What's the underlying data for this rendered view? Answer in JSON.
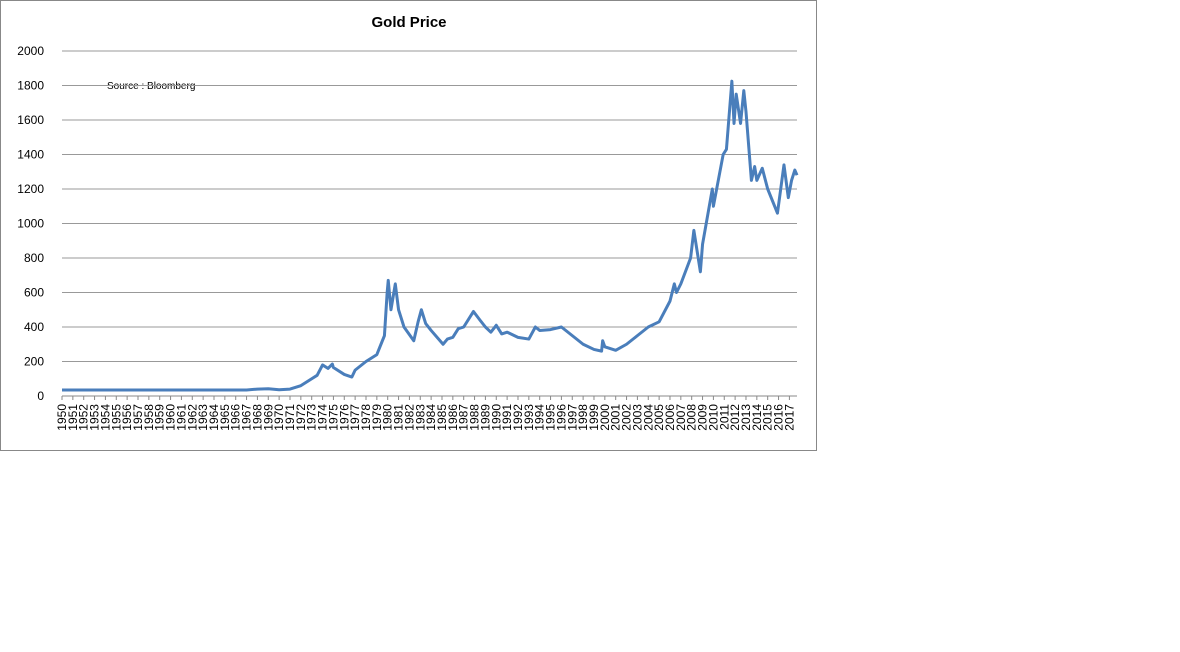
{
  "chart_data": {
    "type": "line",
    "title": "Gold Price",
    "annotation": "Source : Bloomberg",
    "x": [
      1950,
      1967,
      1968,
      1969,
      1970,
      1971,
      1972,
      1973,
      1973.5,
      1974,
      1974.5,
      1974.9,
      1975,
      1976,
      1976.7,
      1977,
      1978,
      1979,
      1979.7,
      1979.95,
      1980.05,
      1980.3,
      1980.7,
      1981,
      1981.5,
      1982.4,
      1982.8,
      1983.1,
      1983.5,
      1984,
      1985.1,
      1985.5,
      1986,
      1986.5,
      1987,
      1987.9,
      1988.5,
      1989,
      1989.5,
      1990,
      1990.5,
      1991,
      1992,
      1993,
      1993.6,
      1994,
      1995,
      1996,
      1997,
      1998,
      1999,
      1999.7,
      1999.8,
      2000,
      2001,
      2002,
      2003,
      2004,
      2005,
      2006,
      2006.4,
      2006.6,
      2007,
      2007.9,
      2008.2,
      2008.8,
      2009,
      2009.9,
      2010,
      2010.9,
      2011.2,
      2011.7,
      2011.9,
      2012.1,
      2012.5,
      2012.8,
      2013,
      2013.5,
      2013.8,
      2014,
      2014.5,
      2015,
      2015.9,
      2016.5,
      2016.9,
      2017.2,
      2017.5,
      2017.7
    ],
    "series": [
      {
        "name": "Gold Price",
        "color": "#4a7ebb",
        "values": [
          35,
          35,
          40,
          42,
          36,
          40,
          60,
          100,
          120,
          180,
          160,
          185,
          165,
          125,
          110,
          150,
          200,
          240,
          350,
          600,
          670,
          500,
          650,
          500,
          400,
          320,
          430,
          500,
          420,
          380,
          300,
          330,
          340,
          390,
          400,
          490,
          440,
          400,
          370,
          410,
          360,
          370,
          340,
          330,
          400,
          380,
          385,
          400,
          350,
          300,
          270,
          260,
          320,
          285,
          265,
          300,
          350,
          400,
          430,
          550,
          650,
          600,
          650,
          800,
          960,
          720,
          880,
          1200,
          1100,
          1400,
          1430,
          1825,
          1580,
          1750,
          1580,
          1770,
          1650,
          1250,
          1330,
          1250,
          1320,
          1200,
          1060,
          1340,
          1150,
          1250,
          1310,
          1280
        ]
      }
    ],
    "xlim": [
      1950,
      2017.7
    ],
    "xticks": [
      1950,
      1951,
      1952,
      1953,
      1954,
      1955,
      1956,
      1957,
      1958,
      1959,
      1960,
      1961,
      1962,
      1963,
      1964,
      1965,
      1966,
      1967,
      1968,
      1969,
      1970,
      1971,
      1972,
      1973,
      1974,
      1975,
      1976,
      1977,
      1978,
      1979,
      1980,
      1981,
      1982,
      1983,
      1984,
      1985,
      1986,
      1987,
      1988,
      1989,
      1990,
      1991,
      1992,
      1993,
      1994,
      1995,
      1996,
      1997,
      1998,
      1999,
      2000,
      2001,
      2002,
      2003,
      2004,
      2005,
      2006,
      2007,
      2008,
      2009,
      2010,
      2011,
      2012,
      2013,
      2014,
      2015,
      2016,
      2017
    ],
    "ylim": [
      0,
      2000
    ],
    "yticks": [
      0,
      200,
      400,
      600,
      800,
      1000,
      1200,
      1400,
      1600,
      1800,
      2000
    ],
    "grid": true
  }
}
